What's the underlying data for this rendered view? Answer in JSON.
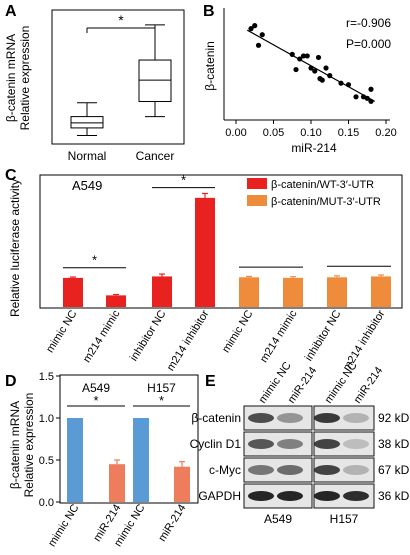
{
  "panels": {
    "A": {
      "letter": "A",
      "ylabel_line1": "β-catenin mRNA",
      "ylabel_line2": "Relative expression",
      "sig": "*",
      "chart_data": {
        "type": "box",
        "categories": [
          "Normal",
          "Cancer"
        ],
        "ylim": [
          0,
          10.5
        ],
        "boxes": [
          {
            "name": "Normal",
            "whisker_low": 0.6,
            "q1": 1.2,
            "median": 1.6,
            "q3": 2.1,
            "whisker_high": 3.2
          },
          {
            "name": "Cancer",
            "whisker_low": 2.1,
            "q1": 3.3,
            "median": 5.0,
            "q3": 6.6,
            "whisker_high": 9.4
          }
        ]
      }
    },
    "B": {
      "letter": "B",
      "ylabel": "β-catenin",
      "xlabel": "miR-214",
      "r_text": "r=-0.906",
      "p_text": "P=0.000",
      "chart_data": {
        "type": "scatter",
        "xlim": [
          0.0,
          0.2
        ],
        "xticks": [
          "0.00",
          "0.05",
          "0.10",
          "0.15",
          "0.20"
        ],
        "ylim": [
          0,
          7
        ],
        "points": [
          {
            "x": 0.02,
            "y": 5.9
          },
          {
            "x": 0.025,
            "y": 6.1
          },
          {
            "x": 0.03,
            "y": 4.8
          },
          {
            "x": 0.035,
            "y": 5.5
          },
          {
            "x": 0.075,
            "y": 4.2
          },
          {
            "x": 0.08,
            "y": 3.2
          },
          {
            "x": 0.085,
            "y": 3.9
          },
          {
            "x": 0.09,
            "y": 4.1
          },
          {
            "x": 0.095,
            "y": 4.1
          },
          {
            "x": 0.1,
            "y": 3.3
          },
          {
            "x": 0.105,
            "y": 3.1
          },
          {
            "x": 0.11,
            "y": 4.0
          },
          {
            "x": 0.112,
            "y": 2.6
          },
          {
            "x": 0.115,
            "y": 2.5
          },
          {
            "x": 0.12,
            "y": 3.3
          },
          {
            "x": 0.125,
            "y": 2.8
          },
          {
            "x": 0.14,
            "y": 2.3
          },
          {
            "x": 0.15,
            "y": 2.2
          },
          {
            "x": 0.16,
            "y": 1.4
          },
          {
            "x": 0.17,
            "y": 1.4
          },
          {
            "x": 0.175,
            "y": 1.3
          },
          {
            "x": 0.18,
            "y": 1.9
          },
          {
            "x": 0.18,
            "y": 1.1
          }
        ],
        "fit_line": {
          "x0": 0.015,
          "y0": 5.8,
          "x1": 0.185,
          "y1": 1.1
        }
      }
    },
    "C": {
      "letter": "C",
      "cell_line": "A549",
      "ylabel": "Relative luciferase activity",
      "sig": "*",
      "chart_data": {
        "type": "bar",
        "ylim": [
          0,
          4.5
        ],
        "categories": [
          "mimic NC",
          "m214 mimic",
          "inhibitor NC",
          "m214 inhibitor",
          "mimic NC",
          "m214 mimic",
          "inhibitor NC",
          "m214 inhibitor"
        ],
        "series": [
          {
            "name": "β-catenin/WT-3′-UTR",
            "color": "#e8231f",
            "values": [
              1.0,
              0.4,
              1.05,
              3.75,
              null,
              null,
              null,
              null
            ],
            "errors": [
              0.03,
              0.03,
              0.08,
              0.15,
              null,
              null,
              null,
              null
            ]
          },
          {
            "name": "β-catenin/MUT-3′-UTR",
            "color": "#ef8c3c",
            "values": [
              null,
              null,
              null,
              null,
              1.02,
              1.0,
              1.02,
              1.05
            ],
            "errors": [
              null,
              null,
              null,
              null,
              0.03,
              0.04,
              0.05,
              0.05
            ]
          }
        ]
      }
    },
    "D": {
      "letter": "D",
      "ylabel_line1": "β-catenin mRNA",
      "ylabel_line2": "Relative expression",
      "sig": "*",
      "chart_data": {
        "type": "bar",
        "ylim": [
          0,
          1.5
        ],
        "yticks": [
          "0.0",
          "0.5",
          "1.0",
          "1.5"
        ],
        "groups": [
          {
            "name": "A549",
            "categories": [
              "mimic NC",
              "miR-214"
            ],
            "values": [
              1.0,
              0.45
            ],
            "errors": [
              0,
              0.05
            ],
            "colors": [
              "#5b9bd5",
              "#ed7d5c"
            ]
          },
          {
            "name": "H157",
            "categories": [
              "mimic NC",
              "miR-214"
            ],
            "values": [
              1.0,
              0.42
            ],
            "errors": [
              0,
              0.06
            ],
            "colors": [
              "#5b9bd5",
              "#ed7d5c"
            ]
          }
        ]
      }
    },
    "E": {
      "letter": "E",
      "lane_labels": [
        "mimic NC",
        "miR-214",
        "mimic NC",
        "miR-214"
      ],
      "rows": [
        {
          "protein": "β-catenin",
          "size": "92 kD"
        },
        {
          "protein": "Cyclin D1",
          "size": "38 kD"
        },
        {
          "protein": "c-Myc",
          "size": "67 kD"
        },
        {
          "protein": "GAPDH",
          "size": "36 kD"
        }
      ],
      "cell_lines": [
        "A549",
        "H157"
      ]
    }
  }
}
